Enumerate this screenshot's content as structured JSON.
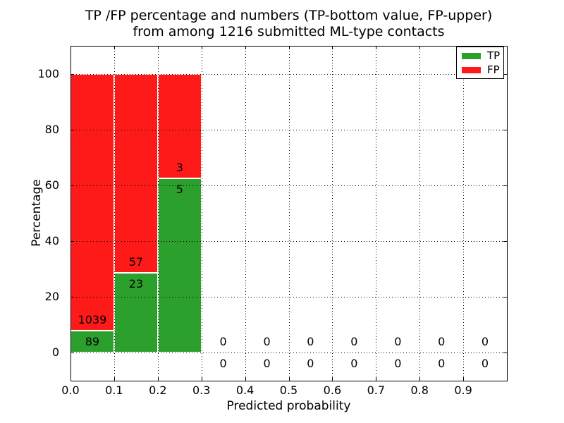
{
  "colors": {
    "tp": "#2ca02c",
    "fp": "#ff1a1a",
    "grid": "#000000",
    "frame": "#000000",
    "background": "#ffffff",
    "text": "#000000"
  },
  "chart_data": {
    "type": "bar",
    "stacked": true,
    "title_lines": [
      "TP /FP percentage and numbers (TP-bottom value, FP-upper)",
      "from among 1216 submitted ML-type contacts"
    ],
    "total_submitted": 1216,
    "xlabel": "Predicted probability",
    "ylabel": "Percentage",
    "xlim": [
      0.0,
      1.0
    ],
    "ylim": [
      -10,
      110
    ],
    "x_tick_values": [
      0.0,
      0.1,
      0.2,
      0.3,
      0.4,
      0.5,
      0.6,
      0.7,
      0.8,
      0.9
    ],
    "x_tick_labels": [
      "0.0",
      "0.1",
      "0.2",
      "0.3",
      "0.4",
      "0.5",
      "0.6",
      "0.7",
      "0.8",
      "0.9"
    ],
    "y_ticks": [
      0,
      20,
      40,
      60,
      80,
      100
    ],
    "grid": "dotted",
    "legend": {
      "position": "upper right",
      "entries": [
        {
          "label": "TP",
          "color": "#2ca02c"
        },
        {
          "label": "FP",
          "color": "#ff1a1a"
        }
      ]
    },
    "bins": [
      {
        "lower": 0.0,
        "upper": 0.1,
        "tp": 89,
        "fp": 1039
      },
      {
        "lower": 0.1,
        "upper": 0.2,
        "tp": 23,
        "fp": 57
      },
      {
        "lower": 0.2,
        "upper": 0.3,
        "tp": 5,
        "fp": 3
      },
      {
        "lower": 0.3,
        "upper": 0.4,
        "tp": 0,
        "fp": 0
      },
      {
        "lower": 0.4,
        "upper": 0.5,
        "tp": 0,
        "fp": 0
      },
      {
        "lower": 0.5,
        "upper": 0.6,
        "tp": 0,
        "fp": 0
      },
      {
        "lower": 0.6,
        "upper": 0.7,
        "tp": 0,
        "fp": 0
      },
      {
        "lower": 0.7,
        "upper": 0.8,
        "tp": 0,
        "fp": 0
      },
      {
        "lower": 0.8,
        "upper": 0.9,
        "tp": 0,
        "fp": 0
      },
      {
        "lower": 0.9,
        "upper": 1.0,
        "tp": 0,
        "fp": 0
      }
    ]
  }
}
